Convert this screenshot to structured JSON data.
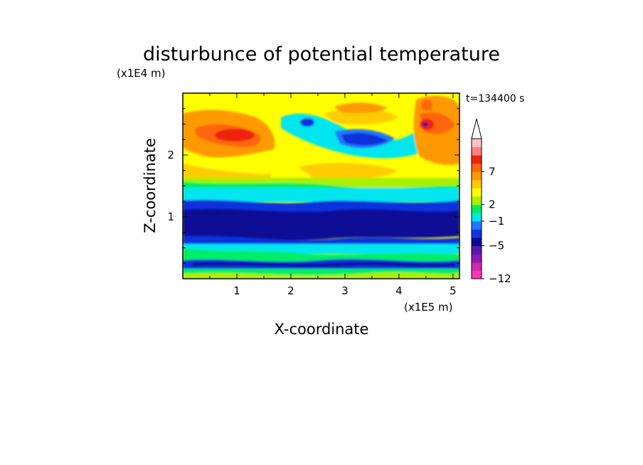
{
  "chart_data": {
    "type": "heatmap",
    "title": "disturbunce of potential temperature",
    "xlabel": "X-coordinate",
    "ylabel": "Z-coordinate",
    "x_unit": "(x1E5 m)",
    "y_unit": "(x1E4 m)",
    "time_label": "t=134400 s",
    "xlim": [
      0,
      5.12
    ],
    "ylim": [
      0,
      3.0
    ],
    "x_ticks": [
      "1",
      "2",
      "3",
      "4",
      "5"
    ],
    "y_ticks": [
      "1",
      "2"
    ],
    "colorbar": {
      "tick_labels": [
        "7",
        "2",
        "−1",
        "−5",
        "−12"
      ],
      "colors": [
        "#ff33bb",
        "#cc2aaa",
        "#8b1ab8",
        "#5a1aa8",
        "#0a0a96",
        "#1133dd",
        "#2277ff",
        "#00e5ee",
        "#00ee66",
        "#aaf000",
        "#ffff00",
        "#ffcc00",
        "#ff9900",
        "#ff6610",
        "#ee2211",
        "#ff8080",
        "#ffc0c0"
      ],
      "extend_top": true
    },
    "zones": [
      {
        "z": [
          0.0,
          0.1
        ],
        "value": "mixed, greens/yellow"
      },
      {
        "z": [
          0.1,
          0.25
        ],
        "value": "-5"
      },
      {
        "z": [
          0.25,
          0.55
        ],
        "value": "-1"
      },
      {
        "z": [
          0.55,
          0.85
        ],
        "value": "-3"
      },
      {
        "z": [
          0.85,
          1.2
        ],
        "value": "-6"
      },
      {
        "z": [
          1.2,
          1.5
        ],
        "value": "-3"
      },
      {
        "z": [
          1.5,
          1.9
        ],
        "value": "0 to 1"
      },
      {
        "z": [
          1.9,
          2.9
        ],
        "value": "2 to 7 (wave disturbances)"
      }
    ]
  }
}
